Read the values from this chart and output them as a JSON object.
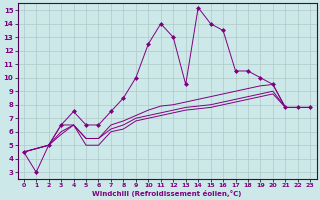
{
  "xlabel": "Windchill (Refroidissement éolien,°C)",
  "bg_color": "#cce8e8",
  "line_color": "#800080",
  "grid_color": "#b0c8c8",
  "xlim": [
    -0.5,
    23.5
  ],
  "ylim": [
    2.5,
    15.5
  ],
  "xticks": [
    0,
    1,
    2,
    3,
    4,
    5,
    6,
    7,
    8,
    9,
    10,
    11,
    12,
    13,
    14,
    15,
    16,
    17,
    18,
    19,
    20,
    21,
    22,
    23
  ],
  "yticks": [
    3,
    4,
    5,
    6,
    7,
    8,
    9,
    10,
    11,
    12,
    13,
    14,
    15
  ],
  "series1_x": [
    0,
    1,
    2,
    3,
    4,
    5,
    6,
    7,
    8,
    9,
    10,
    11,
    12,
    13,
    14,
    15,
    16,
    17,
    18,
    19,
    20,
    21,
    22,
    23
  ],
  "series1_y": [
    4.5,
    3.0,
    5.0,
    6.5,
    7.5,
    6.5,
    6.5,
    7.5,
    8.5,
    10.0,
    12.5,
    14.0,
    13.0,
    9.5,
    15.2,
    14.0,
    13.5,
    10.5,
    10.5,
    10.0,
    9.5,
    7.8,
    7.8,
    7.8
  ],
  "series2_x": [
    0,
    2,
    3,
    4,
    5,
    6,
    7,
    8,
    9,
    10,
    11,
    12,
    13,
    14,
    15,
    16,
    17,
    18,
    19,
    20,
    21,
    22,
    23
  ],
  "series2_y": [
    4.5,
    5.0,
    6.5,
    6.5,
    5.5,
    5.5,
    6.5,
    6.8,
    7.2,
    7.6,
    7.9,
    8.0,
    8.2,
    8.4,
    8.6,
    8.8,
    9.0,
    9.2,
    9.4,
    9.5,
    7.8,
    7.8,
    7.8
  ],
  "series3_x": [
    0,
    2,
    3,
    4,
    5,
    6,
    7,
    8,
    9,
    10,
    11,
    12,
    13,
    14,
    15,
    16,
    17,
    18,
    19,
    20,
    21,
    22,
    23
  ],
  "series3_y": [
    4.5,
    5.0,
    6.0,
    6.5,
    5.5,
    5.5,
    6.2,
    6.5,
    7.0,
    7.2,
    7.4,
    7.6,
    7.8,
    7.9,
    8.0,
    8.2,
    8.4,
    8.6,
    8.8,
    9.0,
    7.8,
    7.8,
    7.8
  ],
  "series4_x": [
    0,
    2,
    3,
    4,
    5,
    6,
    7,
    8,
    9,
    10,
    11,
    12,
    13,
    14,
    15,
    16,
    17,
    18,
    19,
    20,
    21,
    22,
    23
  ],
  "series4_y": [
    4.5,
    5.0,
    5.8,
    6.5,
    5.0,
    5.0,
    6.0,
    6.2,
    6.8,
    7.0,
    7.2,
    7.4,
    7.6,
    7.7,
    7.8,
    8.0,
    8.2,
    8.4,
    8.6,
    8.8,
    7.8,
    7.8,
    7.8
  ]
}
